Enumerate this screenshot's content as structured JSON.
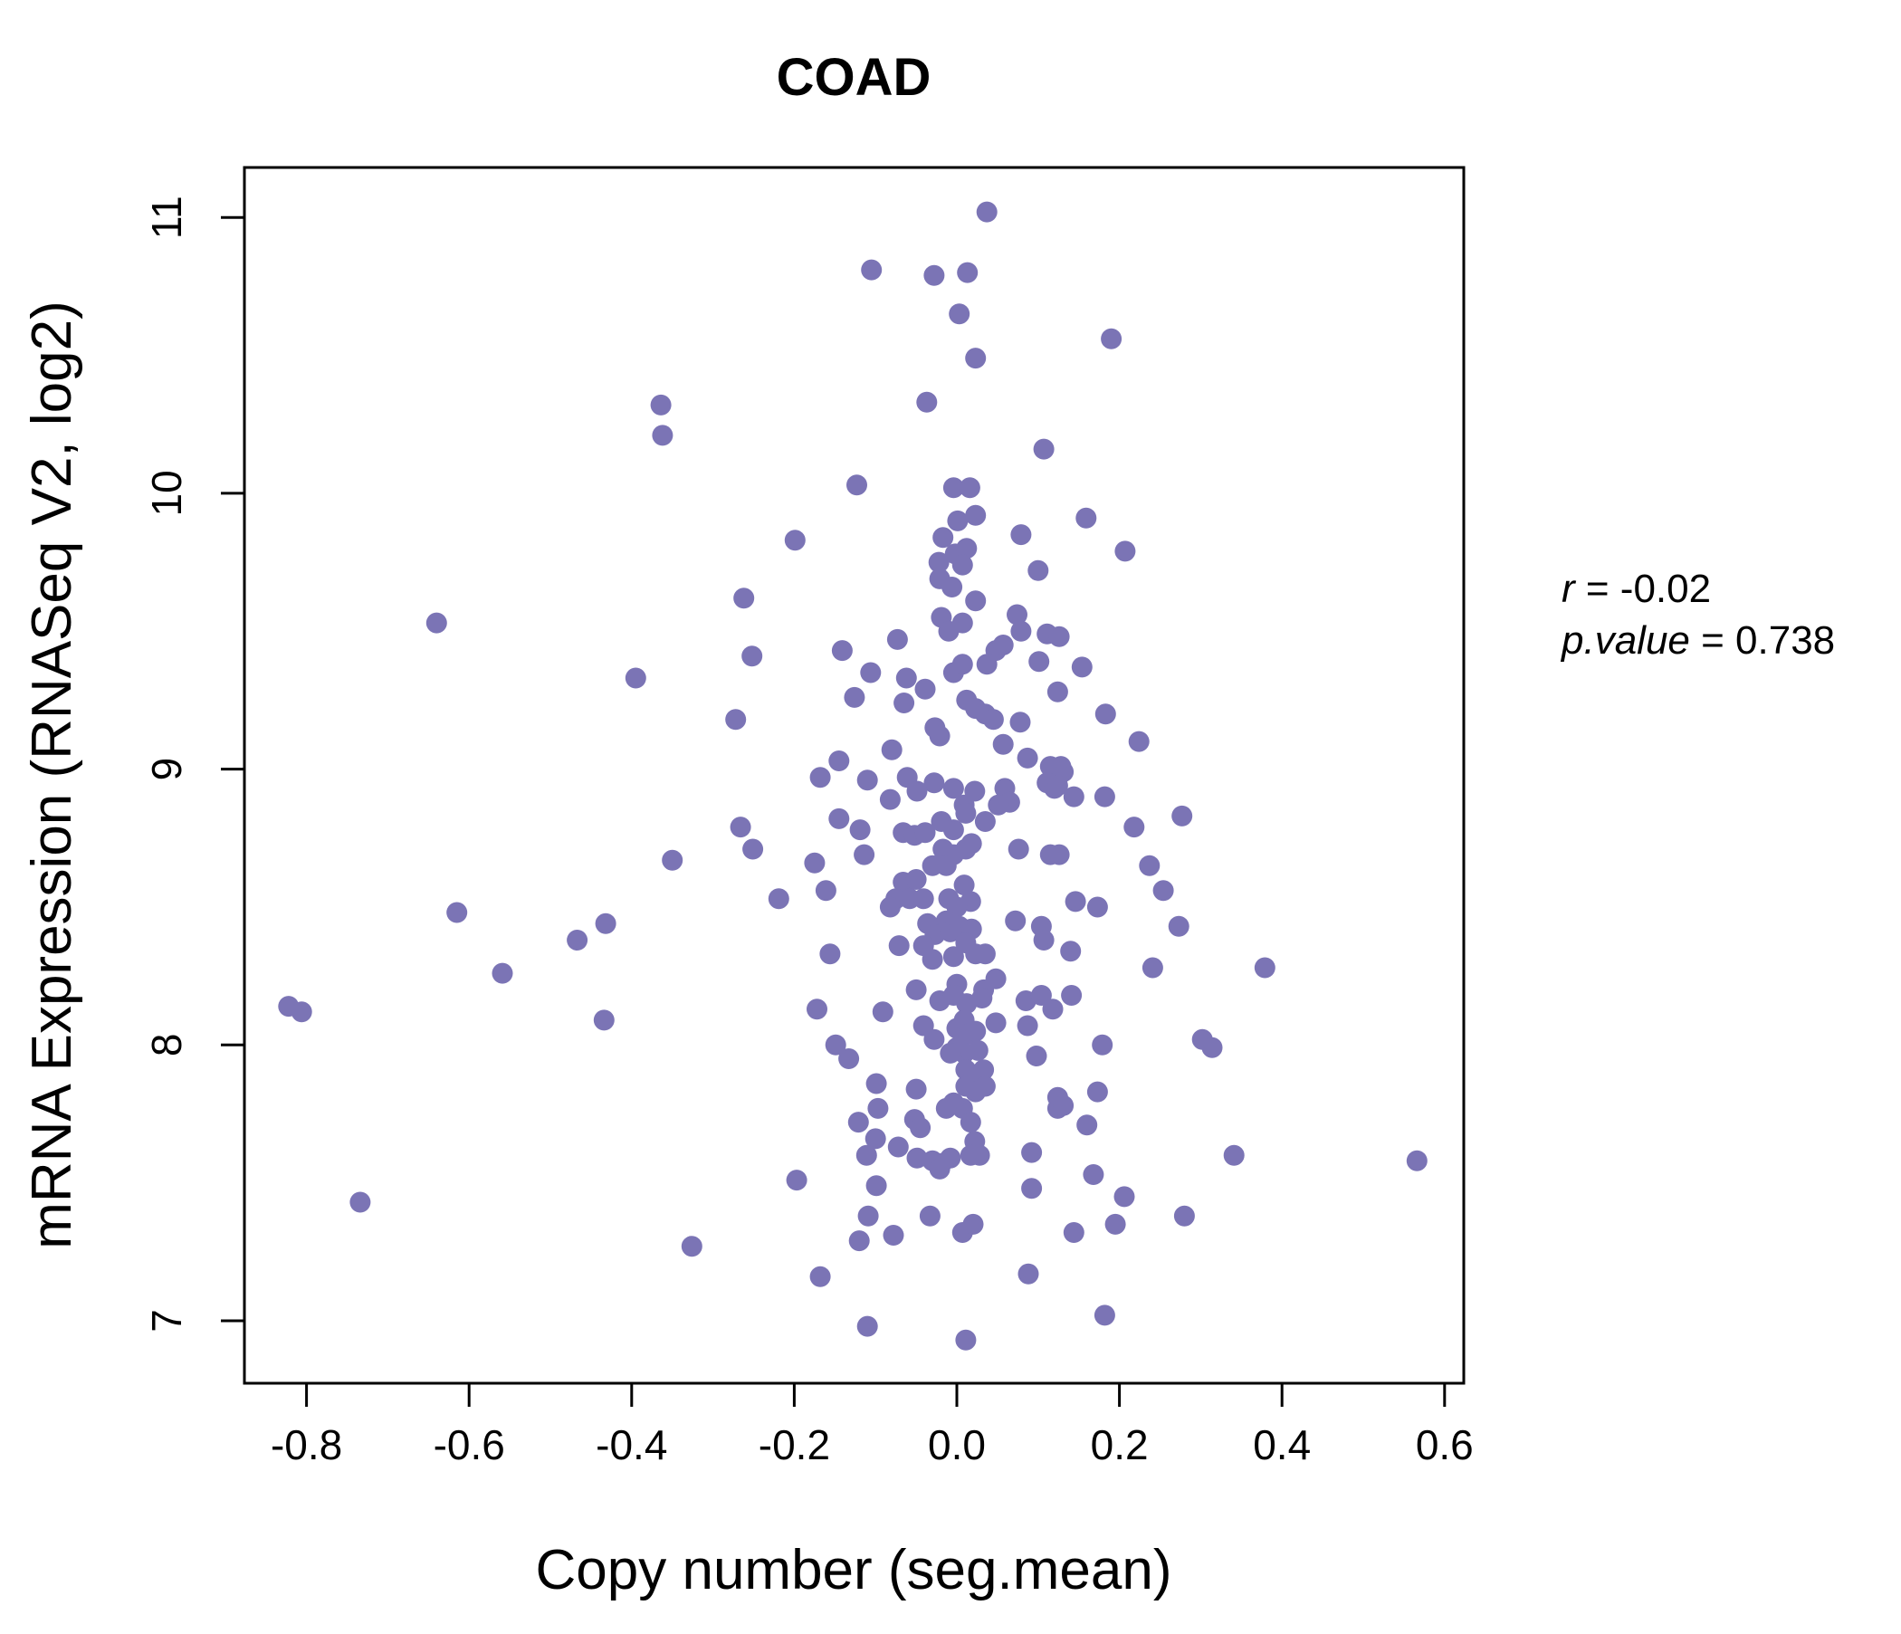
{
  "title": "COAD",
  "title_color": "#7a72b8",
  "annotation": {
    "r_name": "r",
    "r_value": " = -0.02",
    "p_name": "p.value",
    "p_value": " = 0.738"
  },
  "chart_data": {
    "type": "scatter",
    "title": "COAD",
    "xlabel": "Copy number (seg.mean)",
    "ylabel": "mRNA Expression (RNASeq V2, log2)",
    "xlim": [
      -0.88,
      0.62
    ],
    "ylim": [
      6.77,
      11.18
    ],
    "x_ticks": [
      -0.8,
      -0.6,
      -0.4,
      -0.2,
      0.0,
      0.2,
      0.4,
      0.6
    ],
    "x_tick_labels": [
      "-0.8",
      "-0.6",
      "-0.4",
      "-0.2",
      "0.0",
      "0.2",
      "0.4",
      "0.6"
    ],
    "y_ticks": [
      7,
      8,
      9,
      10,
      11
    ],
    "y_tick_labels": [
      "7",
      "8",
      "9",
      "10",
      "11"
    ],
    "grid": false,
    "legend": null,
    "point_color": "#7b74b5",
    "stats": {
      "r": -0.02,
      "p_value": 0.738
    },
    "points": [
      [
        0.037,
        11.02
      ],
      [
        -0.105,
        10.81
      ],
      [
        -0.028,
        10.79
      ],
      [
        0.013,
        10.8
      ],
      [
        0.003,
        10.65
      ],
      [
        0.023,
        10.49
      ],
      [
        -0.037,
        10.33
      ],
      [
        -0.364,
        10.32
      ],
      [
        -0.362,
        10.21
      ],
      [
        0.107,
        10.16
      ],
      [
        -0.123,
        10.03
      ],
      [
        -0.004,
        10.02
      ],
      [
        0.016,
        10.02
      ],
      [
        -0.199,
        9.83
      ],
      [
        0.001,
        9.9
      ],
      [
        0.023,
        9.92
      ],
      [
        -0.017,
        9.84
      ],
      [
        0.079,
        9.85
      ],
      [
        0.1,
        9.72
      ],
      [
        -0.002,
        9.78
      ],
      [
        -0.022,
        9.75
      ],
      [
        0.012,
        9.8
      ],
      [
        0.007,
        9.74
      ],
      [
        -0.021,
        9.69
      ],
      [
        -0.006,
        9.66
      ],
      [
        0.19,
        10.56
      ],
      [
        0.159,
        9.91
      ],
      [
        0.207,
        9.79
      ],
      [
        -0.64,
        9.53
      ],
      [
        -0.395,
        9.33
      ],
      [
        -0.615,
        8.48
      ],
      [
        -0.467,
        8.38
      ],
      [
        -0.432,
        8.44
      ],
      [
        -0.559,
        8.26
      ],
      [
        -0.262,
        9.62
      ],
      [
        -0.252,
        9.41
      ],
      [
        -0.272,
        9.18
      ],
      [
        -0.141,
        9.43
      ],
      [
        -0.106,
        9.35
      ],
      [
        -0.126,
        9.26
      ],
      [
        -0.073,
        9.47
      ],
      [
        -0.062,
        9.33
      ],
      [
        -0.065,
        9.24
      ],
      [
        -0.039,
        9.29
      ],
      [
        -0.019,
        9.55
      ],
      [
        0.007,
        9.53
      ],
      [
        0.023,
        9.61
      ],
      [
        -0.01,
        9.5
      ],
      [
        0.074,
        9.56
      ],
      [
        0.079,
        9.5
      ],
      [
        0.111,
        9.49
      ],
      [
        0.048,
        9.43
      ],
      [
        0.057,
        9.45
      ],
      [
        -0.004,
        9.35
      ],
      [
        0.007,
        9.38
      ],
      [
        0.037,
        9.38
      ],
      [
        0.101,
        9.39
      ],
      [
        0.124,
        9.28
      ],
      [
        0.012,
        9.25
      ],
      [
        0.023,
        9.22
      ],
      [
        0.035,
        9.2
      ],
      [
        0.045,
        9.18
      ],
      [
        -0.027,
        9.15
      ],
      [
        -0.021,
        9.12
      ],
      [
        0.078,
        9.17
      ],
      [
        0.057,
        9.09
      ],
      [
        -0.08,
        9.07
      ],
      [
        -0.145,
        9.03
      ],
      [
        -0.168,
        8.97
      ],
      [
        -0.11,
        8.96
      ],
      [
        -0.061,
        8.97
      ],
      [
        -0.082,
        8.89
      ],
      [
        -0.028,
        8.95
      ],
      [
        0.126,
        9.48
      ],
      [
        0.154,
        9.37
      ],
      [
        0.183,
        9.2
      ],
      [
        0.224,
        9.1
      ],
      [
        0.128,
        9.01
      ],
      [
        0.131,
        8.99
      ],
      [
        0.087,
        9.04
      ],
      [
        0.115,
        9.01
      ],
      [
        -0.004,
        8.93
      ],
      [
        0.009,
        8.87
      ],
      [
        0.022,
        8.92
      ],
      [
        0.059,
        8.93
      ],
      [
        0.065,
        8.88
      ],
      [
        0.111,
        8.95
      ],
      [
        0.12,
        8.93
      ],
      [
        0.124,
        8.94
      ],
      [
        -0.049,
        8.92
      ],
      [
        -0.266,
        8.79
      ],
      [
        -0.251,
        8.71
      ],
      [
        -0.35,
        8.67
      ],
      [
        -0.175,
        8.66
      ],
      [
        -0.145,
        8.82
      ],
      [
        -0.119,
        8.78
      ],
      [
        -0.114,
        8.69
      ],
      [
        -0.161,
        8.56
      ],
      [
        -0.219,
        8.53
      ],
      [
        -0.066,
        8.77
      ],
      [
        -0.052,
        8.76
      ],
      [
        -0.039,
        8.77
      ],
      [
        -0.019,
        8.81
      ],
      [
        -0.004,
        8.78
      ],
      [
        0.011,
        8.84
      ],
      [
        0.035,
        8.81
      ],
      [
        0.051,
        8.87
      ],
      [
        -0.017,
        8.71
      ],
      [
        -0.004,
        8.69
      ],
      [
        0.011,
        8.71
      ],
      [
        0.018,
        8.73
      ],
      [
        -0.03,
        8.65
      ],
      [
        -0.013,
        8.65
      ],
      [
        0.017,
        8.52
      ],
      [
        0.009,
        8.58
      ],
      [
        0.076,
        8.71
      ],
      [
        0.115,
        8.69
      ],
      [
        -0.066,
        8.59
      ],
      [
        -0.05,
        8.6
      ],
      [
        -0.075,
        8.53
      ],
      [
        -0.058,
        8.53
      ],
      [
        -0.041,
        8.53
      ],
      [
        -0.082,
        8.5
      ],
      [
        -0.01,
        8.53
      ],
      [
        0.0,
        8.5
      ],
      [
        -0.013,
        8.45
      ],
      [
        -0.036,
        8.44
      ],
      [
        -0.027,
        8.4
      ],
      [
        -0.008,
        8.41
      ],
      [
        0.003,
        8.43
      ],
      [
        0.018,
        8.42
      ],
      [
        0.011,
        8.37
      ],
      [
        -0.041,
        8.36
      ],
      [
        -0.03,
        8.31
      ],
      [
        -0.004,
        8.32
      ],
      [
        0.023,
        8.33
      ],
      [
        0.035,
        8.33
      ],
      [
        -0.071,
        8.36
      ],
      [
        -0.156,
        8.33
      ],
      [
        0.048,
        8.24
      ],
      [
        0.104,
        8.43
      ],
      [
        0.107,
        8.38
      ],
      [
        0.072,
        8.45
      ],
      [
        0.144,
        8.9
      ],
      [
        0.182,
        8.9
      ],
      [
        0.218,
        8.79
      ],
      [
        0.277,
        8.83
      ],
      [
        0.126,
        8.69
      ],
      [
        0.237,
        8.65
      ],
      [
        0.254,
        8.56
      ],
      [
        0.146,
        8.52
      ],
      [
        0.173,
        8.5
      ],
      [
        0.273,
        8.43
      ],
      [
        0.14,
        8.34
      ],
      [
        0.241,
        8.28
      ],
      [
        0.379,
        8.28
      ],
      [
        -0.822,
        8.14
      ],
      [
        -0.806,
        8.12
      ],
      [
        -0.434,
        8.09
      ],
      [
        -0.734,
        7.43
      ],
      [
        -0.172,
        8.13
      ],
      [
        -0.091,
        8.12
      ],
      [
        -0.149,
        8.0
      ],
      [
        -0.133,
        7.95
      ],
      [
        -0.099,
        7.86
      ],
      [
        -0.097,
        7.77
      ],
      [
        -0.121,
        7.72
      ],
      [
        -0.1,
        7.66
      ],
      [
        -0.111,
        7.6
      ],
      [
        -0.072,
        7.63
      ],
      [
        -0.05,
        7.84
      ],
      [
        -0.052,
        7.73
      ],
      [
        -0.049,
        7.59
      ],
      [
        -0.03,
        7.58
      ],
      [
        -0.019,
        7.57
      ],
      [
        -0.008,
        7.59
      ],
      [
        -0.05,
        8.2
      ],
      [
        0.0,
        8.22
      ],
      [
        0.033,
        8.2
      ],
      [
        -0.021,
        8.16
      ],
      [
        -0.004,
        8.18
      ],
      [
        0.012,
        8.15
      ],
      [
        0.031,
        8.17
      ],
      [
        -0.041,
        8.07
      ],
      [
        -0.028,
        8.02
      ],
      [
        0.0,
        8.06
      ],
      [
        0.009,
        8.09
      ],
      [
        0.014,
        8.04
      ],
      [
        0.023,
        8.05
      ],
      [
        0.026,
        7.98
      ],
      [
        0.009,
        7.97
      ],
      [
        0.0,
        7.99
      ],
      [
        -0.008,
        7.97
      ],
      [
        0.011,
        7.91
      ],
      [
        0.026,
        7.89
      ],
      [
        0.033,
        7.91
      ],
      [
        0.011,
        7.85
      ],
      [
        0.023,
        7.83
      ],
      [
        0.035,
        7.85
      ],
      [
        0.007,
        7.77
      ],
      [
        -0.004,
        7.79
      ],
      [
        -0.013,
        7.77
      ],
      [
        0.017,
        7.72
      ],
      [
        0.022,
        7.65
      ],
      [
        0.028,
        7.6
      ],
      [
        0.048,
        8.08
      ],
      [
        0.087,
        8.07
      ],
      [
        0.085,
        8.16
      ],
      [
        0.104,
        8.18
      ],
      [
        0.118,
        8.13
      ],
      [
        0.098,
        7.96
      ],
      [
        0.124,
        7.81
      ],
      [
        0.124,
        7.77
      ],
      [
        -0.045,
        7.7
      ],
      [
        -0.021,
        7.55
      ],
      [
        0.017,
        7.6
      ],
      [
        0.092,
        7.61
      ],
      [
        -0.197,
        7.51
      ],
      [
        -0.099,
        7.49
      ],
      [
        -0.326,
        7.27
      ],
      [
        -0.109,
        7.38
      ],
      [
        -0.12,
        7.29
      ],
      [
        -0.078,
        7.31
      ],
      [
        -0.033,
        7.38
      ],
      [
        0.007,
        7.32
      ],
      [
        0.02,
        7.35
      ],
      [
        0.092,
        7.48
      ],
      [
        -0.168,
        7.16
      ],
      [
        -0.11,
        6.98
      ],
      [
        0.011,
        6.93
      ],
      [
        0.088,
        7.17
      ],
      [
        0.141,
        8.18
      ],
      [
        0.179,
        8.0
      ],
      [
        0.302,
        8.02
      ],
      [
        0.314,
        7.99
      ],
      [
        0.173,
        7.83
      ],
      [
        0.131,
        7.78
      ],
      [
        0.16,
        7.71
      ],
      [
        0.341,
        7.6
      ],
      [
        0.566,
        7.58
      ],
      [
        0.168,
        7.53
      ],
      [
        0.206,
        7.45
      ],
      [
        0.144,
        7.32
      ],
      [
        0.195,
        7.35
      ],
      [
        0.28,
        7.38
      ],
      [
        0.182,
        7.02
      ]
    ]
  }
}
